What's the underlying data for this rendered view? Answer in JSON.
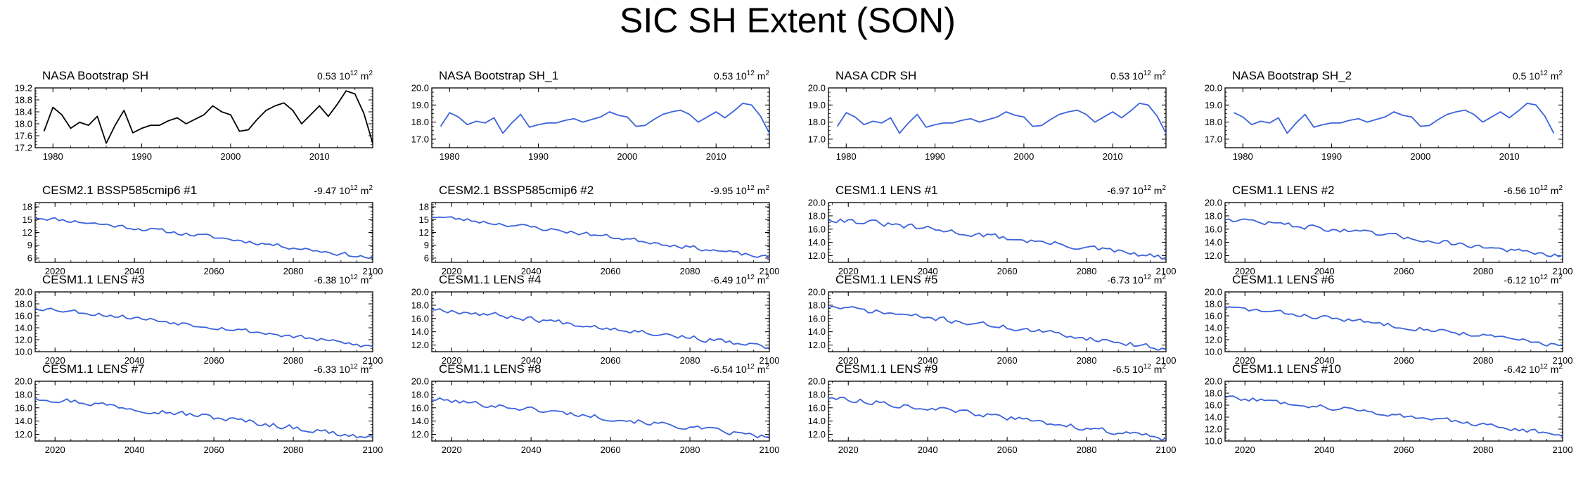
{
  "figure": {
    "title": "SIC SH Extent (SON)"
  },
  "colors": {
    "observed": "#000000",
    "model": "#3b63dc",
    "axis": "#000000"
  },
  "chart_data": [
    {
      "type": "line",
      "title": "NASA Bootstrap SH",
      "trend": "0.53",
      "trend_unit_base": "10",
      "trend_unit_exp": "12",
      "trend_unit_tail": " m",
      "trend_unit_exp2": "2",
      "color_key": "observed",
      "xlim": [
        1978,
        2016
      ],
      "ylim": [
        17.2,
        19.2
      ],
      "xticks": [
        1980,
        1990,
        2000,
        2010
      ],
      "yticks": [
        17.2,
        17.6,
        18.0,
        18.4,
        18.8,
        19.2
      ],
      "x_start": 1979,
      "values": [
        17.75,
        18.55,
        18.3,
        17.85,
        18.05,
        17.95,
        18.25,
        17.35,
        17.95,
        18.45,
        17.7,
        17.85,
        17.95,
        17.95,
        18.1,
        18.2,
        18.0,
        18.15,
        18.3,
        18.6,
        18.4,
        18.3,
        17.75,
        17.8,
        18.15,
        18.45,
        18.6,
        18.7,
        18.45,
        18.0,
        18.3,
        18.6,
        18.25,
        18.65,
        19.1,
        19.0,
        18.35,
        17.35
      ]
    },
    {
      "type": "line",
      "title": "NASA Bootstrap SH_1",
      "trend": "0.53",
      "trend_unit_base": "10",
      "trend_unit_exp": "12",
      "trend_unit_tail": " m",
      "trend_unit_exp2": "2",
      "color_key": "model",
      "xlim": [
        1978,
        2016
      ],
      "ylim": [
        16.5,
        20.0
      ],
      "xticks": [
        1980,
        1990,
        2000,
        2010
      ],
      "yticks": [
        17.0,
        18.0,
        19.0,
        20.0
      ],
      "x_start": 1979,
      "values": [
        17.75,
        18.55,
        18.3,
        17.85,
        18.05,
        17.95,
        18.25,
        17.35,
        17.95,
        18.45,
        17.7,
        17.85,
        17.95,
        17.95,
        18.1,
        18.2,
        18.0,
        18.15,
        18.3,
        18.6,
        18.4,
        18.3,
        17.75,
        17.8,
        18.15,
        18.45,
        18.6,
        18.7,
        18.45,
        18.0,
        18.3,
        18.6,
        18.25,
        18.65,
        19.1,
        19.0,
        18.35,
        17.35
      ]
    },
    {
      "type": "line",
      "title": "NASA CDR SH",
      "trend": "0.53",
      "trend_unit_base": "10",
      "trend_unit_exp": "12",
      "trend_unit_tail": " m",
      "trend_unit_exp2": "2",
      "color_key": "model",
      "xlim": [
        1978,
        2016
      ],
      "ylim": [
        16.5,
        20.0
      ],
      "xticks": [
        1980,
        1990,
        2000,
        2010
      ],
      "yticks": [
        17.0,
        18.0,
        19.0,
        20.0
      ],
      "x_start": 1979,
      "values": [
        17.75,
        18.55,
        18.3,
        17.85,
        18.05,
        17.95,
        18.25,
        17.35,
        17.95,
        18.45,
        17.7,
        17.85,
        17.95,
        17.95,
        18.1,
        18.2,
        18.0,
        18.15,
        18.3,
        18.6,
        18.4,
        18.3,
        17.75,
        17.8,
        18.15,
        18.45,
        18.6,
        18.7,
        18.45,
        18.0,
        18.3,
        18.6,
        18.25,
        18.65,
        19.1,
        19.0,
        18.35,
        17.35
      ]
    },
    {
      "type": "line",
      "title": "NASA Bootstrap SH_2",
      "trend": "0.5",
      "trend_unit_base": "10",
      "trend_unit_exp": "12",
      "trend_unit_tail": " m",
      "trend_unit_exp2": "2",
      "color_key": "model",
      "xlim": [
        1978,
        2016
      ],
      "ylim": [
        16.5,
        20.0
      ],
      "xticks": [
        1980,
        1990,
        2000,
        2010
      ],
      "yticks": [
        17.0,
        18.0,
        19.0,
        20.0
      ],
      "x_start": 1979,
      "values": [
        18.55,
        18.3,
        17.85,
        18.05,
        17.95,
        18.25,
        17.35,
        17.95,
        18.45,
        17.7,
        17.85,
        17.95,
        17.95,
        18.1,
        18.2,
        18.0,
        18.15,
        18.3,
        18.6,
        18.4,
        18.3,
        17.75,
        17.8,
        18.15,
        18.45,
        18.6,
        18.7,
        18.45,
        18.0,
        18.3,
        18.6,
        18.25,
        18.65,
        19.1,
        19.0,
        18.35,
        17.35
      ]
    },
    {
      "type": "line",
      "title": "CESM2.1 BSSP585cmip6 #1",
      "trend": "-9.47",
      "trend_unit_base": "10",
      "trend_unit_exp": "12",
      "trend_unit_tail": " m",
      "trend_unit_exp2": "2",
      "color_key": "model",
      "xlim": [
        2015,
        2100
      ],
      "ylim": [
        5,
        19
      ],
      "xticks": [
        2020,
        2040,
        2060,
        2080,
        2100
      ],
      "yticks": [
        6,
        9,
        12,
        15,
        18
      ],
      "x_start": 2015,
      "series_gen": {
        "start": 15.6,
        "end": 6.0,
        "noise": 0.45,
        "seed": 11
      }
    },
    {
      "type": "line",
      "title": "CESM2.1 BSSP585cmip6 #2",
      "trend": "-9.95",
      "trend_unit_base": "10",
      "trend_unit_exp": "12",
      "trend_unit_tail": " m",
      "trend_unit_exp2": "2",
      "color_key": "model",
      "xlim": [
        2015,
        2100
      ],
      "ylim": [
        5,
        19
      ],
      "xticks": [
        2020,
        2040,
        2060,
        2080,
        2100
      ],
      "yticks": [
        6,
        9,
        12,
        15,
        18
      ],
      "x_start": 2015,
      "series_gen": {
        "start": 15.8,
        "end": 6.0,
        "noise": 0.45,
        "seed": 23
      }
    },
    {
      "type": "line",
      "title": "CESM1.1 LENS #1",
      "trend": "-6.97",
      "trend_unit_base": "10",
      "trend_unit_exp": "12",
      "trend_unit_tail": " m",
      "trend_unit_exp2": "2",
      "color_key": "model",
      "xlim": [
        2015,
        2100
      ],
      "ylim": [
        11.0,
        20.0
      ],
      "xticks": [
        2020,
        2040,
        2060,
        2080,
        2100
      ],
      "yticks": [
        12.0,
        14.0,
        16.0,
        18.0,
        20.0
      ],
      "x_start": 2015,
      "series_gen": {
        "start": 17.6,
        "end": 11.6,
        "noise": 0.4,
        "seed": 31
      }
    },
    {
      "type": "line",
      "title": "CESM1.1 LENS #2",
      "trend": "-6.56",
      "trend_unit_base": "10",
      "trend_unit_exp": "12",
      "trend_unit_tail": " m",
      "trend_unit_exp2": "2",
      "color_key": "model",
      "xlim": [
        2015,
        2100
      ],
      "ylim": [
        11.0,
        20.0
      ],
      "xticks": [
        2020,
        2040,
        2060,
        2080,
        2100
      ],
      "yticks": [
        12.0,
        14.0,
        16.0,
        18.0,
        20.0
      ],
      "x_start": 2015,
      "series_gen": {
        "start": 17.6,
        "end": 11.8,
        "noise": 0.35,
        "seed": 47
      }
    },
    {
      "type": "line",
      "title": "CESM1.1 LENS #3",
      "trend": "-6.38",
      "trend_unit_base": "10",
      "trend_unit_exp": "12",
      "trend_unit_tail": " m",
      "trend_unit_exp2": "2",
      "color_key": "model",
      "xlim": [
        2015,
        2100
      ],
      "ylim": [
        10.0,
        20.0
      ],
      "xticks": [
        2020,
        2040,
        2060,
        2080,
        2100
      ],
      "yticks": [
        10.0,
        12.0,
        14.0,
        16.0,
        18.0,
        20.0
      ],
      "x_start": 2015,
      "series_gen": {
        "start": 17.4,
        "end": 10.8,
        "noise": 0.35,
        "seed": 53
      }
    },
    {
      "type": "line",
      "title": "CESM1.1 LENS #4",
      "trend": "-6.49",
      "trend_unit_base": "10",
      "trend_unit_exp": "12",
      "trend_unit_tail": " m",
      "trend_unit_exp2": "2",
      "color_key": "model",
      "xlim": [
        2015,
        2100
      ],
      "ylim": [
        11.0,
        20.0
      ],
      "xticks": [
        2020,
        2040,
        2060,
        2080,
        2100
      ],
      "yticks": [
        12.0,
        14.0,
        16.0,
        18.0,
        20.0
      ],
      "x_start": 2015,
      "series_gen": {
        "start": 17.5,
        "end": 11.6,
        "noise": 0.35,
        "seed": 67
      }
    },
    {
      "type": "line",
      "title": "CESM1.1 LENS #5",
      "trend": "-6.73",
      "trend_unit_base": "10",
      "trend_unit_exp": "12",
      "trend_unit_tail": " m",
      "trend_unit_exp2": "2",
      "color_key": "model",
      "xlim": [
        2015,
        2100
      ],
      "ylim": [
        11.0,
        20.0
      ],
      "xticks": [
        2020,
        2040,
        2060,
        2080,
        2100
      ],
      "yticks": [
        12.0,
        14.0,
        16.0,
        18.0,
        20.0
      ],
      "x_start": 2015,
      "series_gen": {
        "start": 17.8,
        "end": 11.4,
        "noise": 0.35,
        "seed": 71
      }
    },
    {
      "type": "line",
      "title": "CESM1.1 LENS #6",
      "trend": "-6.12",
      "trend_unit_base": "10",
      "trend_unit_exp": "12",
      "trend_unit_tail": " m",
      "trend_unit_exp2": "2",
      "color_key": "model",
      "xlim": [
        2015,
        2100
      ],
      "ylim": [
        10.0,
        20.0
      ],
      "xticks": [
        2020,
        2040,
        2060,
        2080,
        2100
      ],
      "yticks": [
        10.0,
        12.0,
        14.0,
        16.0,
        18.0,
        20.0
      ],
      "x_start": 2015,
      "series_gen": {
        "start": 17.4,
        "end": 11.0,
        "noise": 0.35,
        "seed": 83
      }
    },
    {
      "type": "line",
      "title": "CESM1.1 LENS #7",
      "trend": "-6.33",
      "trend_unit_base": "10",
      "trend_unit_exp": "12",
      "trend_unit_tail": " m",
      "trend_unit_exp2": "2",
      "color_key": "model",
      "xlim": [
        2015,
        2100
      ],
      "ylim": [
        11.0,
        20.0
      ],
      "xticks": [
        2020,
        2040,
        2060,
        2080,
        2100
      ],
      "yticks": [
        12.0,
        14.0,
        16.0,
        18.0,
        20.0
      ],
      "x_start": 2015,
      "series_gen": {
        "start": 17.6,
        "end": 11.4,
        "noise": 0.4,
        "seed": 97
      }
    },
    {
      "type": "line",
      "title": "CESM1.1 LENS #8",
      "trend": "-6.54",
      "trend_unit_base": "10",
      "trend_unit_exp": "12",
      "trend_unit_tail": " m",
      "trend_unit_exp2": "2",
      "color_key": "model",
      "xlim": [
        2015,
        2100
      ],
      "ylim": [
        11.0,
        20.0
      ],
      "xticks": [
        2020,
        2040,
        2060,
        2080,
        2100
      ],
      "yticks": [
        12.0,
        14.0,
        16.0,
        18.0,
        20.0
      ],
      "x_start": 2015,
      "series_gen": {
        "start": 17.3,
        "end": 11.5,
        "noise": 0.35,
        "seed": 101
      }
    },
    {
      "type": "line",
      "title": "CESM1.1 LENS #9",
      "trend": "-6.5",
      "trend_unit_base": "10",
      "trend_unit_exp": "12",
      "trend_unit_tail": " m",
      "trend_unit_exp2": "2",
      "color_key": "model",
      "xlim": [
        2015,
        2100
      ],
      "ylim": [
        11.0,
        20.0
      ],
      "xticks": [
        2020,
        2040,
        2060,
        2080,
        2100
      ],
      "yticks": [
        12.0,
        14.0,
        16.0,
        18.0,
        20.0
      ],
      "x_start": 2015,
      "series_gen": {
        "start": 17.6,
        "end": 11.3,
        "noise": 0.35,
        "seed": 113
      }
    },
    {
      "type": "line",
      "title": "CESM1.1 LENS #10",
      "trend": "-6.42",
      "trend_unit_base": "10",
      "trend_unit_exp": "12",
      "trend_unit_tail": " m",
      "trend_unit_exp2": "2",
      "color_key": "model",
      "xlim": [
        2015,
        2100
      ],
      "ylim": [
        10.0,
        20.0
      ],
      "xticks": [
        2020,
        2040,
        2060,
        2080,
        2100
      ],
      "yticks": [
        10.0,
        12.0,
        14.0,
        16.0,
        18.0,
        20.0
      ],
      "x_start": 2015,
      "series_gen": {
        "start": 17.4,
        "end": 11.0,
        "noise": 0.35,
        "seed": 127
      }
    }
  ]
}
